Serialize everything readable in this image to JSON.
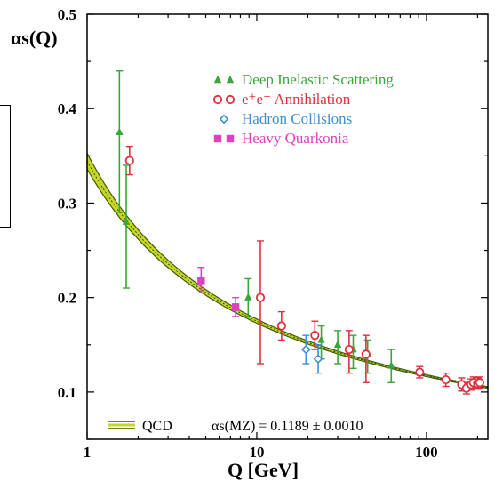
{
  "chart_data": {
    "type": "scatter",
    "title": "",
    "ylabel": "αs(Q)",
    "xlabel": "Q [GeV]",
    "x_scale": "log",
    "xlim": [
      1,
      230
    ],
    "ylim": [
      0.05,
      0.5
    ],
    "x_ticks": [
      "1",
      "10",
      "100"
    ],
    "y_ticks": [
      "0.1",
      "0.2",
      "0.3",
      "0.4",
      "0.5"
    ],
    "legend_position": "top-right",
    "legend": [
      {
        "label": "Deep Inelastic Scattering",
        "color": "#3aa63a",
        "marker": "triangle"
      },
      {
        "label": "e⁺e⁻ Annihilation",
        "color": "#e03040",
        "marker": "circle"
      },
      {
        "label": "Hadron Collisions",
        "color": "#3d8ed6",
        "marker": "diamond"
      },
      {
        "label": "Heavy Quarkonia",
        "color": "#e040c0",
        "marker": "square"
      }
    ],
    "band_label": "QCD",
    "band_formula": "αs(MZ) = 0.1189 ± 0.0010",
    "band_color": "#c8d820",
    "series": [
      {
        "name": "Deep Inelastic Scattering",
        "color": "#3aa63a",
        "marker": "triangle",
        "points": [
          {
            "x": 1.55,
            "y": 0.375,
            "lo": 0.29,
            "hi": 0.44
          },
          {
            "x": 1.7,
            "y": 0.28,
            "lo": 0.21,
            "hi": 0.34
          },
          {
            "x": 8.9,
            "y": 0.2,
            "lo": 0.18,
            "hi": 0.22
          },
          {
            "x": 24,
            "y": 0.155,
            "lo": 0.135,
            "hi": 0.17
          },
          {
            "x": 30,
            "y": 0.15,
            "lo": 0.13,
            "hi": 0.165
          },
          {
            "x": 37,
            "y": 0.145,
            "lo": 0.125,
            "hi": 0.16
          },
          {
            "x": 45,
            "y": 0.14,
            "lo": 0.12,
            "hi": 0.155
          },
          {
            "x": 62,
            "y": 0.128,
            "lo": 0.11,
            "hi": 0.145
          }
        ]
      },
      {
        "name": "e⁺e⁻ Annihilation",
        "color": "#e03040",
        "marker": "circle",
        "points": [
          {
            "x": 1.78,
            "y": 0.345,
            "lo": 0.33,
            "hi": 0.36
          },
          {
            "x": 10.5,
            "y": 0.2,
            "lo": 0.13,
            "hi": 0.26
          },
          {
            "x": 14,
            "y": 0.17,
            "lo": 0.155,
            "hi": 0.185
          },
          {
            "x": 22,
            "y": 0.16,
            "lo": 0.145,
            "hi": 0.175
          },
          {
            "x": 35,
            "y": 0.145,
            "lo": 0.12,
            "hi": 0.165
          },
          {
            "x": 44,
            "y": 0.14,
            "lo": 0.11,
            "hi": 0.16
          },
          {
            "x": 91.2,
            "y": 0.121,
            "lo": 0.115,
            "hi": 0.127
          },
          {
            "x": 130,
            "y": 0.113,
            "lo": 0.106,
            "hi": 0.12
          },
          {
            "x": 161,
            "y": 0.108,
            "lo": 0.101,
            "hi": 0.115
          },
          {
            "x": 172,
            "y": 0.104,
            "lo": 0.098,
            "hi": 0.11
          },
          {
            "x": 183,
            "y": 0.108,
            "lo": 0.102,
            "hi": 0.114
          },
          {
            "x": 189,
            "y": 0.11,
            "lo": 0.104,
            "hi": 0.116
          },
          {
            "x": 200,
            "y": 0.109,
            "lo": 0.103,
            "hi": 0.115
          },
          {
            "x": 206,
            "y": 0.11,
            "lo": 0.104,
            "hi": 0.116
          }
        ]
      },
      {
        "name": "Hadron Collisions",
        "color": "#3d8ed6",
        "marker": "diamond",
        "points": [
          {
            "x": 19.5,
            "y": 0.145,
            "lo": 0.13,
            "hi": 0.16
          },
          {
            "x": 23,
            "y": 0.135,
            "lo": 0.12,
            "hi": 0.15
          }
        ]
      },
      {
        "name": "Heavy Quarkonia",
        "color": "#e040c0",
        "marker": "square",
        "points": [
          {
            "x": 4.7,
            "y": 0.218,
            "lo": 0.205,
            "hi": 0.232
          },
          {
            "x": 7.5,
            "y": 0.19,
            "lo": 0.18,
            "hi": 0.2
          }
        ]
      }
    ]
  }
}
